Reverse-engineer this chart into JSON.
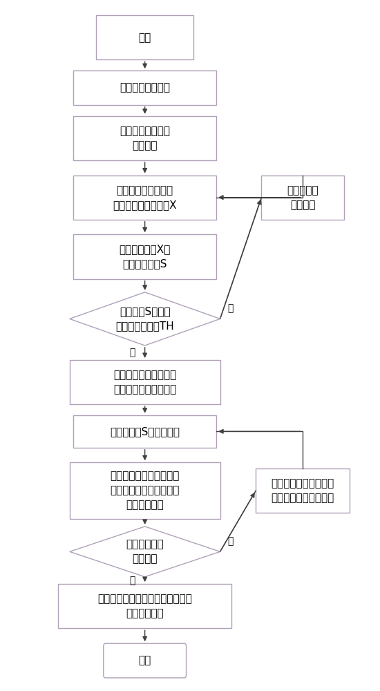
{
  "bg_color": "#ffffff",
  "box_fc": "#ffffff",
  "box_ec": "#b0a0b8",
  "box_ec_dark": "#808080",
  "arrow_color": "#404040",
  "text_color": "#000000",
  "font_size": 11,
  "small_font_size": 10,
  "lw": 1.0,
  "nodes": {
    "start": {
      "text": "开始",
      "type": "rect"
    },
    "n1": {
      "text": "读取一段次声信号",
      "type": "rect"
    },
    "n2": {
      "text": "通过时频分析得到\n特征频率",
      "type": "rect"
    },
    "n3": {
      "text": "对次声信号进行带通\n滤波得到滤波后信号X",
      "type": "rect"
    },
    "n4": {
      "text": "计算得到信号X的\n加权能量曲线S",
      "type": "rect"
    },
    "d1": {
      "text": "能量曲线S中是否\n存在点大于阈值TH",
      "type": "diamond"
    },
    "n5": {
      "text": "计算异常次声信号粗略\n的起始时间和持续时间",
      "type": "rect"
    },
    "n6": {
      "text": "对能量曲线S数字离散化",
      "type": "rect"
    },
    "n7": {
      "text": "计算离散化能量曲线与另\n一站点某段离散能量曲线\n间的相关程度",
      "type": "rect"
    },
    "d2": {
      "text": "相关程度是否\n高于阈值",
      "type": "diamond"
    },
    "n8": {
      "text": "认为属于两站点的两端次声信号来\n源于同一声源",
      "type": "rect"
    },
    "end": {
      "text": "结束",
      "type": "rounded"
    },
    "r1": {
      "text": "读取另一段\n次声信号",
      "type": "rect"
    },
    "r2": {
      "text": "选同一站点的另一段时\n间相近的离散能量曲线",
      "type": "rect"
    }
  }
}
